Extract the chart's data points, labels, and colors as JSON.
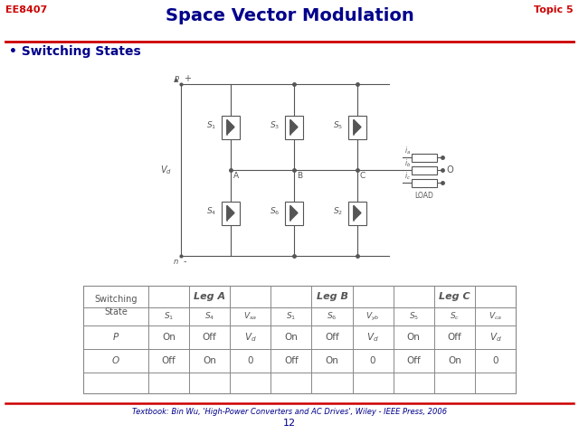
{
  "title": "Space Vector Modulation",
  "title_color": "#00008B",
  "header_left": "EE8407",
  "header_right": "Topic 5",
  "header_color": "#CC0000",
  "bullet_text": "Switching States",
  "footer_text": "Textbook: Bin Wu, 'High-Power Converters and AC Drives', Wiley - IEEE Press, 2006",
  "page_number": "12",
  "bg_color": "#FFFFFF",
  "text_color": "#00008B",
  "line_color": "#CC0000",
  "circuit_color": "#555555",
  "table_line_color": "#888888",
  "sw_labels_top": [
    "S1",
    "S3",
    "S5"
  ],
  "sw_labels_bot": [
    "S4",
    "S6",
    "S2"
  ],
  "leg_labels": [
    "A",
    "B",
    "C"
  ],
  "cur_labels": [
    "ia",
    "ib",
    "ic"
  ]
}
